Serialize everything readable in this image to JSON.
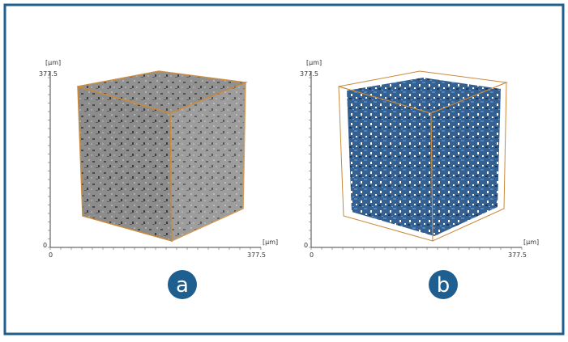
{
  "panels": [
    {
      "label": "a",
      "y_unit": "[µm]",
      "y_max": "377.5",
      "y_min": "0",
      "x_unit": "[µm]",
      "x_min": "0",
      "x_max": "377.5"
    },
    {
      "label": "b",
      "y_unit": "[µm]",
      "y_max": "377.5",
      "y_min": "0",
      "x_unit": "[µm]",
      "x_min": "0",
      "x_max": "377.5"
    }
  ]
}
